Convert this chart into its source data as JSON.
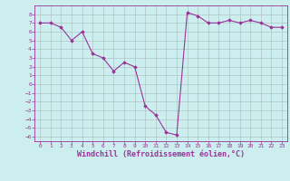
{
  "x": [
    0,
    1,
    2,
    3,
    4,
    5,
    6,
    7,
    8,
    9,
    10,
    11,
    12,
    13,
    14,
    15,
    16,
    17,
    18,
    19,
    20,
    21,
    22,
    23
  ],
  "y": [
    7.0,
    7.0,
    6.5,
    5.0,
    6.0,
    3.5,
    3.0,
    1.5,
    2.5,
    2.0,
    -2.5,
    -3.5,
    -5.5,
    -5.8,
    8.2,
    7.8,
    7.0,
    7.0,
    7.3,
    7.0,
    7.3,
    7.0,
    6.5,
    6.5
  ],
  "line_color": "#993399",
  "marker": "D",
  "marker_size": 1.8,
  "background_color": "#cceeee",
  "grid_color": "#aabbbb",
  "xlabel": "Windchill (Refroidissement éolien,°C)",
  "ylim": [
    -6.5,
    9.0
  ],
  "xlim": [
    -0.5,
    23.5
  ],
  "yticks": [
    8,
    7,
    6,
    5,
    4,
    3,
    2,
    1,
    0,
    -1,
    -2,
    -3,
    -4,
    -5,
    -6
  ],
  "xticks": [
    0,
    1,
    2,
    3,
    4,
    5,
    6,
    7,
    8,
    9,
    10,
    11,
    12,
    13,
    14,
    15,
    16,
    17,
    18,
    19,
    20,
    21,
    22,
    23
  ],
  "tick_fontsize": 4.5,
  "xlabel_fontsize": 6.0,
  "linewidth": 0.8
}
